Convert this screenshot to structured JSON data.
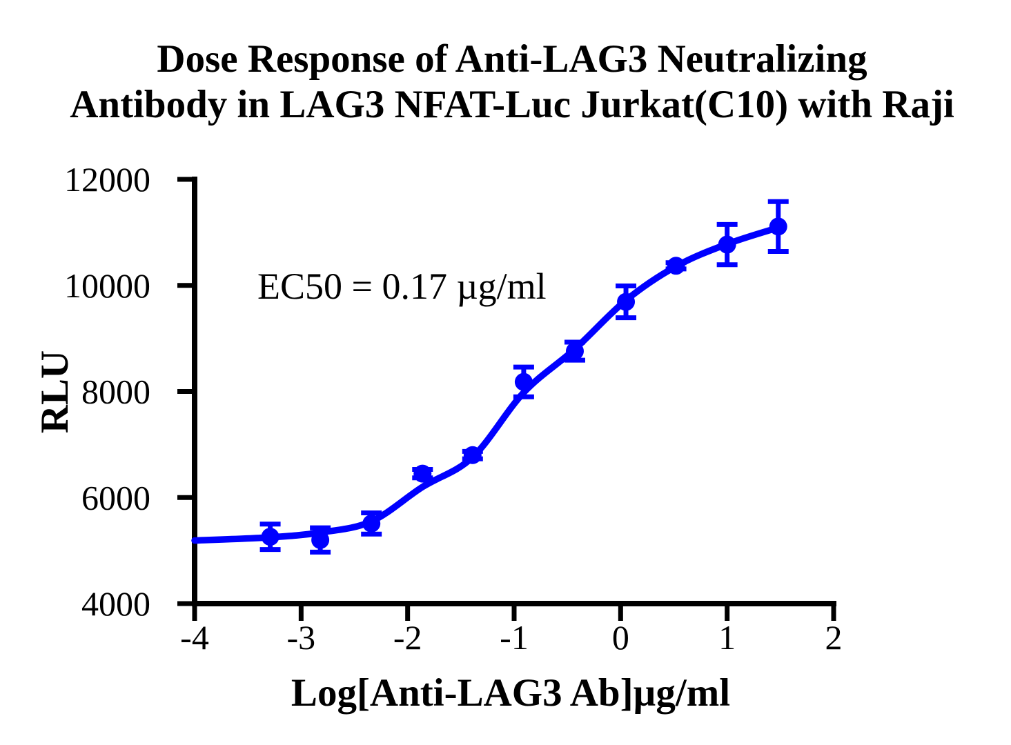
{
  "title": {
    "line1": "Dose Response of Anti-LAG3 Neutralizing",
    "line2": "Antibody in LAG3 NFAT-Luc Jurkat(C10) with Raji"
  },
  "annotation": {
    "ec50_text": "EC50 = 0.17 µg/ml"
  },
  "styles": {
    "accent_blue": "#0000FF",
    "axis_black": "#000000",
    "background": "#FFFFFF"
  },
  "chart_data": {
    "type": "scatter",
    "title": "Dose Response of Anti-LAG3 Neutralizing Antibody in LAG3 NFAT-Luc Jurkat(C10) with Raji",
    "xlabel": "Log[Anti-LAG3 Ab]µg/ml",
    "ylabel": "RLU",
    "xlim": [
      -4,
      2
    ],
    "ylim": [
      4000,
      12000
    ],
    "x_ticks": [
      -4,
      -3,
      -2,
      -1,
      0,
      1,
      2
    ],
    "y_ticks": [
      4000,
      6000,
      8000,
      10000,
      12000
    ],
    "grid": false,
    "legend_position": "none",
    "ec50_value_ug_per_ml": 0.17,
    "series": [
      {
        "color": "#0000FF",
        "marker": "circle",
        "x": [
          -3.29,
          -2.82,
          -2.34,
          -1.86,
          -1.39,
          -0.91,
          -0.43,
          0.05,
          0.52,
          1.0,
          1.48
        ],
        "y": [
          5260,
          5200,
          5510,
          6450,
          6800,
          8180,
          8760,
          9690,
          10370,
          10770,
          11110
        ],
        "yerr": [
          240,
          230,
          200,
          80,
          70,
          280,
          170,
          300,
          60,
          380,
          470
        ]
      }
    ],
    "fit_curve": {
      "color": "#0000FF",
      "x": [
        -4.0,
        -3.29,
        -2.82,
        -2.34,
        -1.86,
        -1.39,
        -0.91,
        -0.43,
        0.05,
        0.52,
        1.0,
        1.48
      ],
      "y": [
        5190,
        5250,
        5340,
        5550,
        6200,
        6760,
        7980,
        8800,
        9720,
        10360,
        10780,
        11090
      ]
    }
  }
}
